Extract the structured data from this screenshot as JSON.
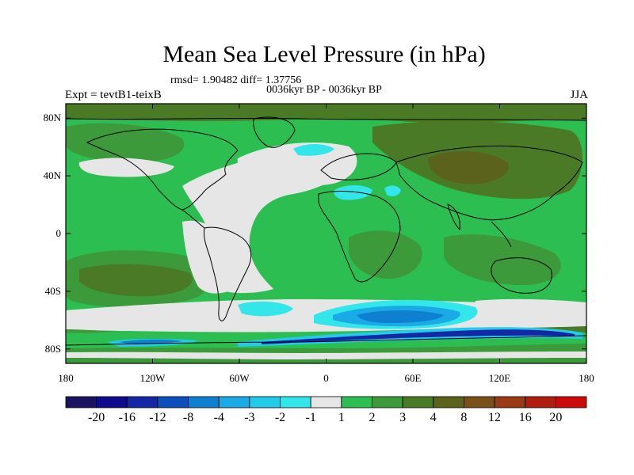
{
  "title": "Mean Sea Level Pressure (in hPa)",
  "stats": "rmsd= 1.90482 diff= 1.37756",
  "subtitle": "0036kyr BP - 0036kyr BP",
  "experiment": "Expt = tevtB1-teixB",
  "season": "JJA",
  "map": {
    "projection": "cylindrical-equidistant",
    "lon_range": [
      -180,
      180
    ],
    "lat_range": [
      -90,
      90
    ],
    "lat_ticks": [
      {
        "value": 80,
        "label": "80N"
      },
      {
        "value": 40,
        "label": "40N"
      },
      {
        "value": 0,
        "label": "0"
      },
      {
        "value": -40,
        "label": "40S"
      },
      {
        "value": -80,
        "label": "80S"
      }
    ],
    "lon_ticks": [
      {
        "value": -180,
        "label": "180"
      },
      {
        "value": -120,
        "label": "120W"
      },
      {
        "value": -60,
        "label": "60W"
      },
      {
        "value": 0,
        "label": "0"
      },
      {
        "value": 60,
        "label": "60E"
      },
      {
        "value": 120,
        "label": "120E"
      },
      {
        "value": 180,
        "label": "180"
      }
    ]
  },
  "colorbar": {
    "colors": [
      "#1a1460",
      "#100b8c",
      "#1428a6",
      "#0c4fbd",
      "#0f7fd0",
      "#1aaae6",
      "#22cce8",
      "#33e6ea",
      "#e6e6e6",
      "#2dbe52",
      "#3d9a3a",
      "#4a7a25",
      "#5a621c",
      "#7a5018",
      "#9a3a16",
      "#b01e12",
      "#cc0a0a"
    ],
    "labels": [
      "-20",
      "-16",
      "-12",
      "-8",
      "-4",
      "-3",
      "-2",
      "-1",
      "1",
      "2",
      "3",
      "4",
      "8",
      "12",
      "16",
      "20"
    ]
  },
  "field_colors": {
    "ocean_base": "#2dbe52",
    "neutral": "#e6e6e6",
    "positive_3": "#3d9a3a",
    "positive_4": "#4a7a25",
    "positive_8": "#5a621c",
    "negative_1": "#33e6ea",
    "negative_2": "#22cce8",
    "negative_3": "#1aaae6",
    "negative_4": "#0f7fd0",
    "negative_8": "#0c4fbd",
    "negative_12": "#1428a6"
  }
}
